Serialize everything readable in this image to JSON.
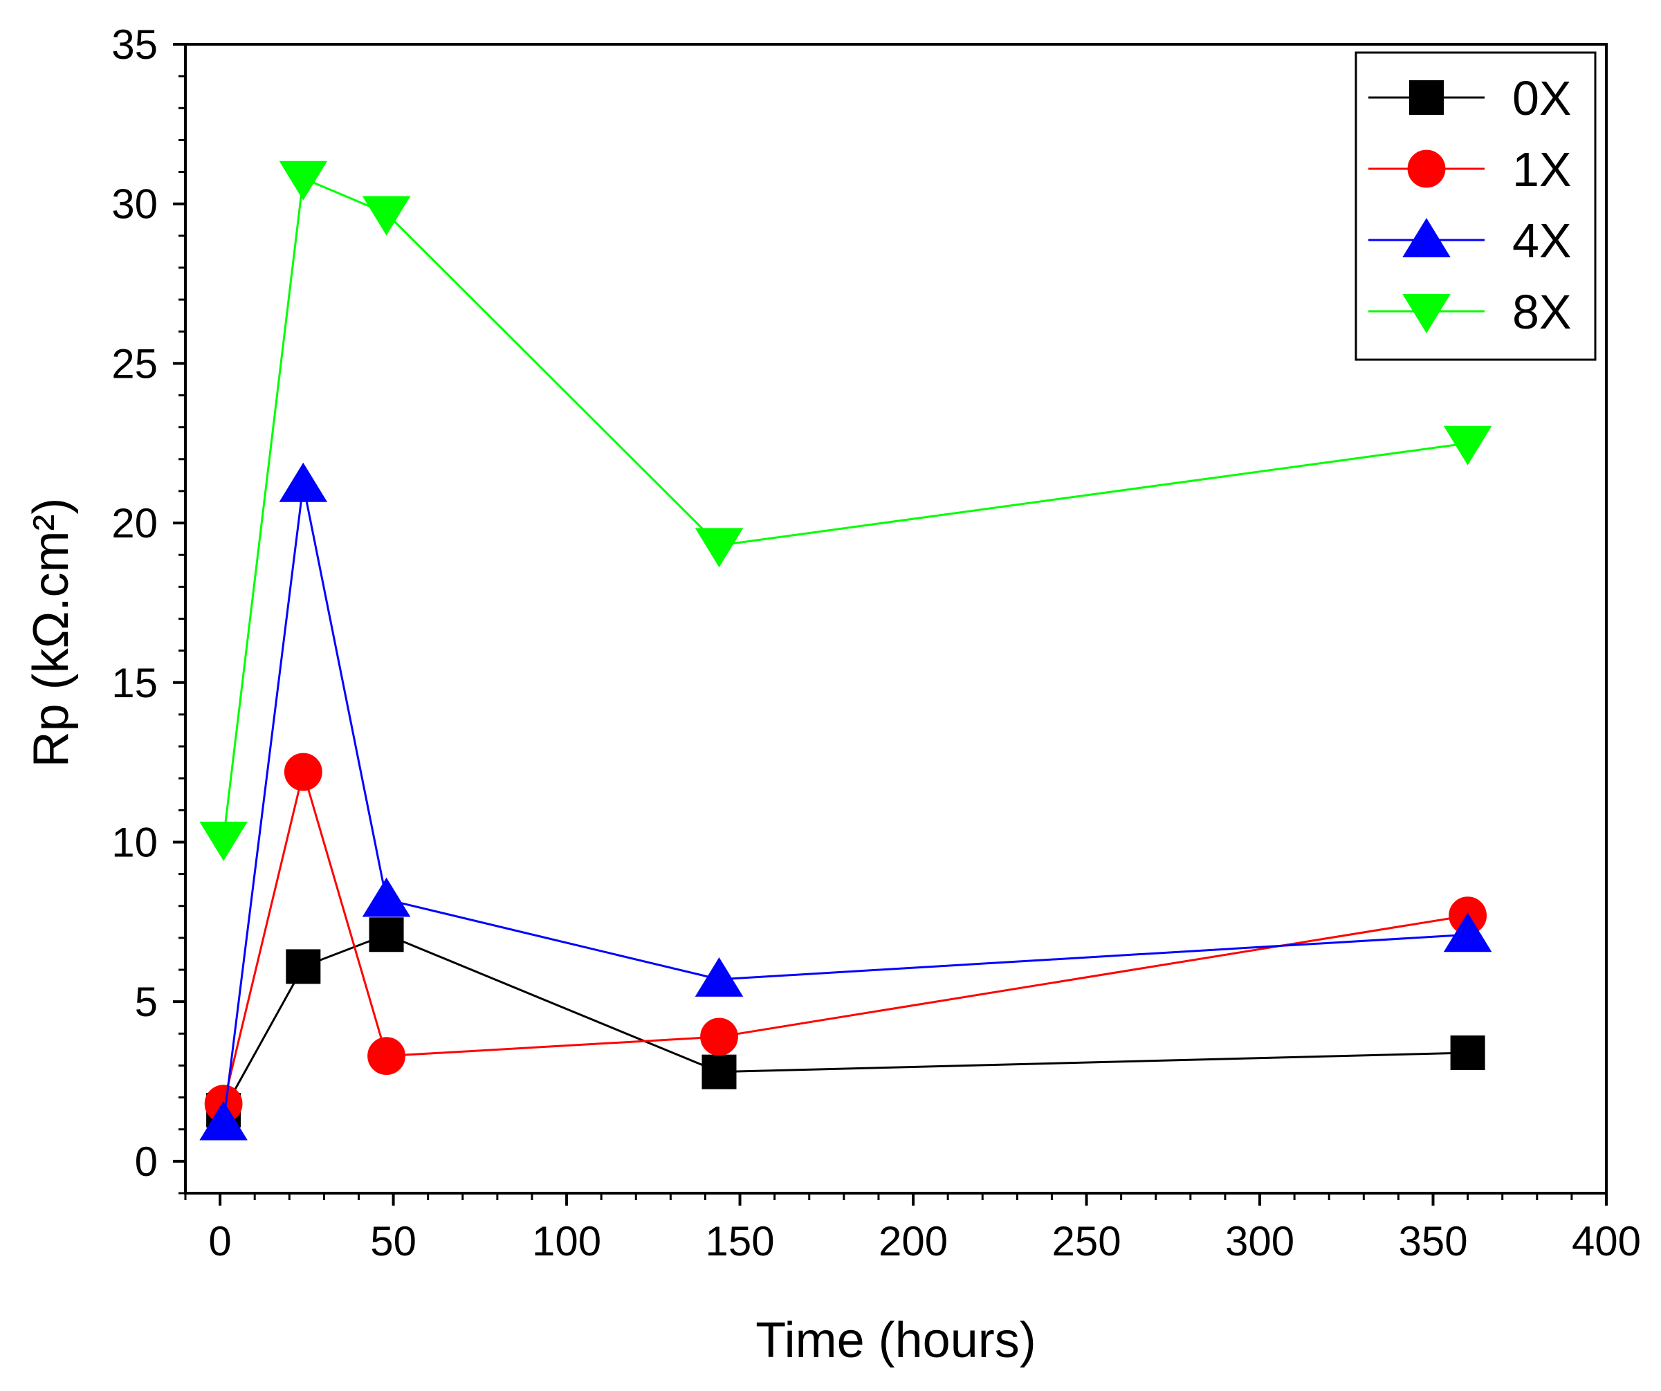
{
  "chart_data": {
    "type": "line",
    "title": "",
    "xlabel": "Time (hours)",
    "ylabel": "Rp (kΩ.cm²)",
    "xlim": [
      -10,
      400
    ],
    "ylim": [
      -1,
      35
    ],
    "xticks": [
      0,
      50,
      100,
      150,
      200,
      250,
      300,
      350,
      400
    ],
    "xtick_labels": [
      "0",
      "50",
      "100",
      "150",
      "200",
      "250",
      "300",
      "350",
      "400"
    ],
    "yticks": [
      0,
      5,
      10,
      15,
      20,
      25,
      30,
      35
    ],
    "ytick_labels": [
      "0",
      "5",
      "10",
      "15",
      "20",
      "25",
      "30",
      "35"
    ],
    "grid": false,
    "legend_position": "top-right",
    "x": [
      1,
      24,
      48,
      144,
      360
    ],
    "series": [
      {
        "name": "0X",
        "color": "#000000",
        "marker": "square",
        "values": [
          1.6,
          6.1,
          7.1,
          2.8,
          3.4
        ]
      },
      {
        "name": "1X",
        "color": "#ff0000",
        "marker": "circle",
        "values": [
          1.8,
          12.2,
          3.3,
          3.9,
          7.7
        ]
      },
      {
        "name": "4X",
        "color": "#0000ff",
        "marker": "triangle-up",
        "values": [
          1.2,
          21.2,
          8.2,
          5.7,
          7.1
        ]
      },
      {
        "name": "8X",
        "color": "#00ff00",
        "marker": "triangle-down",
        "values": [
          10.1,
          30.8,
          29.7,
          19.3,
          22.5
        ]
      }
    ]
  }
}
